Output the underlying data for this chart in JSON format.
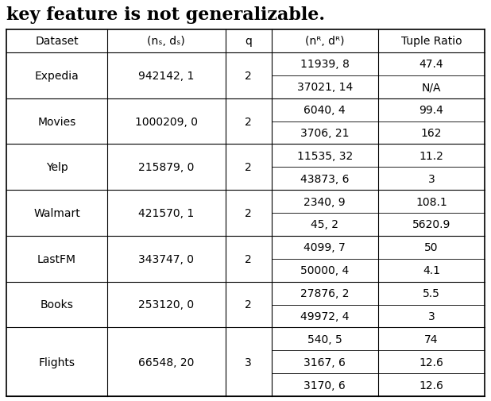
{
  "title_text": "key feature is not generalizable.",
  "col_labels": [
    "Dataset",
    "(nₛ, dₛ)",
    "q",
    "(nᴿ, dᴿ)",
    "Tuple Ratio"
  ],
  "rows": [
    {
      "dataset": "Expedia",
      "ns_ds": "942142, 1",
      "q": "2",
      "sub_rows": [
        {
          "nr_dr": "11939, 8",
          "tuple_ratio": "47.4"
        },
        {
          "nr_dr": "37021, 14",
          "tuple_ratio": "N/A"
        }
      ]
    },
    {
      "dataset": "Movies",
      "ns_ds": "1000209, 0",
      "q": "2",
      "sub_rows": [
        {
          "nr_dr": "6040, 4",
          "tuple_ratio": "99.4"
        },
        {
          "nr_dr": "3706, 21",
          "tuple_ratio": "162"
        }
      ]
    },
    {
      "dataset": "Yelp",
      "ns_ds": "215879, 0",
      "q": "2",
      "sub_rows": [
        {
          "nr_dr": "11535, 32",
          "tuple_ratio": "11.2"
        },
        {
          "nr_dr": "43873, 6",
          "tuple_ratio": "3"
        }
      ]
    },
    {
      "dataset": "Walmart",
      "ns_ds": "421570, 1",
      "q": "2",
      "sub_rows": [
        {
          "nr_dr": "2340, 9",
          "tuple_ratio": "108.1"
        },
        {
          "nr_dr": "45, 2",
          "tuple_ratio": "5620.9"
        }
      ]
    },
    {
      "dataset": "LastFM",
      "ns_ds": "343747, 0",
      "q": "2",
      "sub_rows": [
        {
          "nr_dr": "4099, 7",
          "tuple_ratio": "50"
        },
        {
          "nr_dr": "50000, 4",
          "tuple_ratio": "4.1"
        }
      ]
    },
    {
      "dataset": "Books",
      "ns_ds": "253120, 0",
      "q": "2",
      "sub_rows": [
        {
          "nr_dr": "27876, 2",
          "tuple_ratio": "5.5"
        },
        {
          "nr_dr": "49972, 4",
          "tuple_ratio": "3"
        }
      ]
    },
    {
      "dataset": "Flights",
      "ns_ds": "66548, 20",
      "q": "3",
      "sub_rows": [
        {
          "nr_dr": "540, 5",
          "tuple_ratio": "74"
        },
        {
          "nr_dr": "3167, 6",
          "tuple_ratio": "12.6"
        },
        {
          "nr_dr": "3170, 6",
          "tuple_ratio": "12.6"
        }
      ]
    }
  ],
  "background_color": "#ffffff",
  "font_size": 10,
  "title_font_size": 16,
  "col_props": [
    0.175,
    0.205,
    0.08,
    0.185,
    0.185
  ]
}
